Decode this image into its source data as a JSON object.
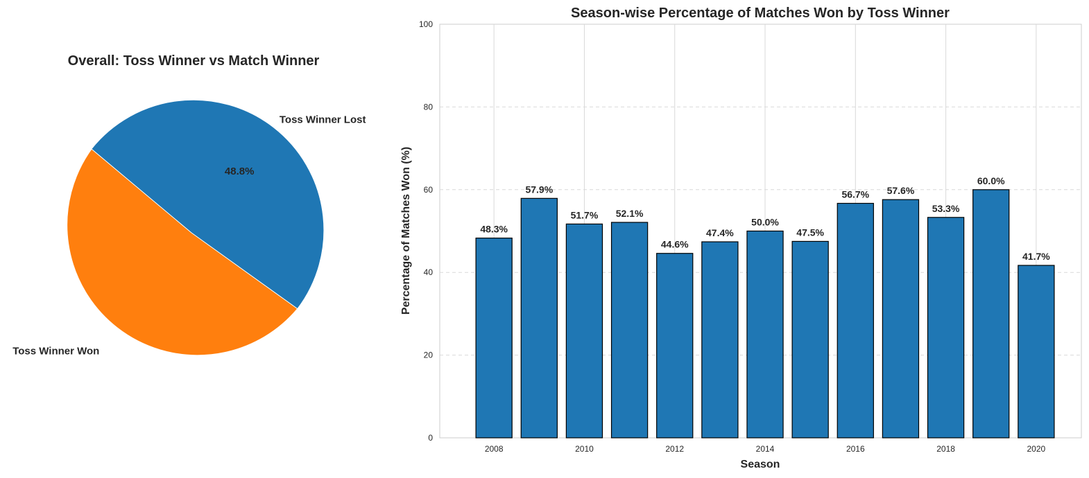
{
  "chart_data": [
    {
      "type": "pie",
      "title": "Overall: Toss Winner vs Match Winner",
      "slices": [
        {
          "label": "Toss Winner Won",
          "value": 51.2,
          "pct_label": "51.2%",
          "color": "#1f77b4",
          "exploded": true
        },
        {
          "label": "Toss Winner Lost",
          "value": 48.8,
          "pct_label": "48.8%",
          "color": "#ff7f0e",
          "exploded": false
        }
      ],
      "start_angle_deg": 140
    },
    {
      "type": "bar",
      "title": "Season-wise Percentage of Matches Won by Toss Winner",
      "xlabel": "Season",
      "ylabel": "Percentage of Matches Won (%)",
      "categories": [
        "2008",
        "2009",
        "2010",
        "2011",
        "2012",
        "2013",
        "2014",
        "2015",
        "2016",
        "2017",
        "2018",
        "2019",
        "2020"
      ],
      "values": [
        48.3,
        57.9,
        51.7,
        52.1,
        44.6,
        47.4,
        50.0,
        47.5,
        56.7,
        57.6,
        53.3,
        60.0,
        41.7
      ],
      "value_labels": [
        "48.3%",
        "57.9%",
        "51.7%",
        "52.1%",
        "44.6%",
        "47.4%",
        "50.0%",
        "47.5%",
        "56.7%",
        "57.6%",
        "53.3%",
        "60.0%",
        "41.7%"
      ],
      "x_ticks": [
        "2008",
        "2010",
        "2012",
        "2014",
        "2016",
        "2018",
        "2020"
      ],
      "y_ticks": [
        "0",
        "20",
        "40",
        "60",
        "80",
        "100"
      ],
      "ylim": [
        0,
        100
      ],
      "xlim": [
        2006.8,
        2021
      ],
      "bar_color": "#1f77b4",
      "edge_color": "#000000",
      "grid": "y dashed, x solid"
    }
  ]
}
